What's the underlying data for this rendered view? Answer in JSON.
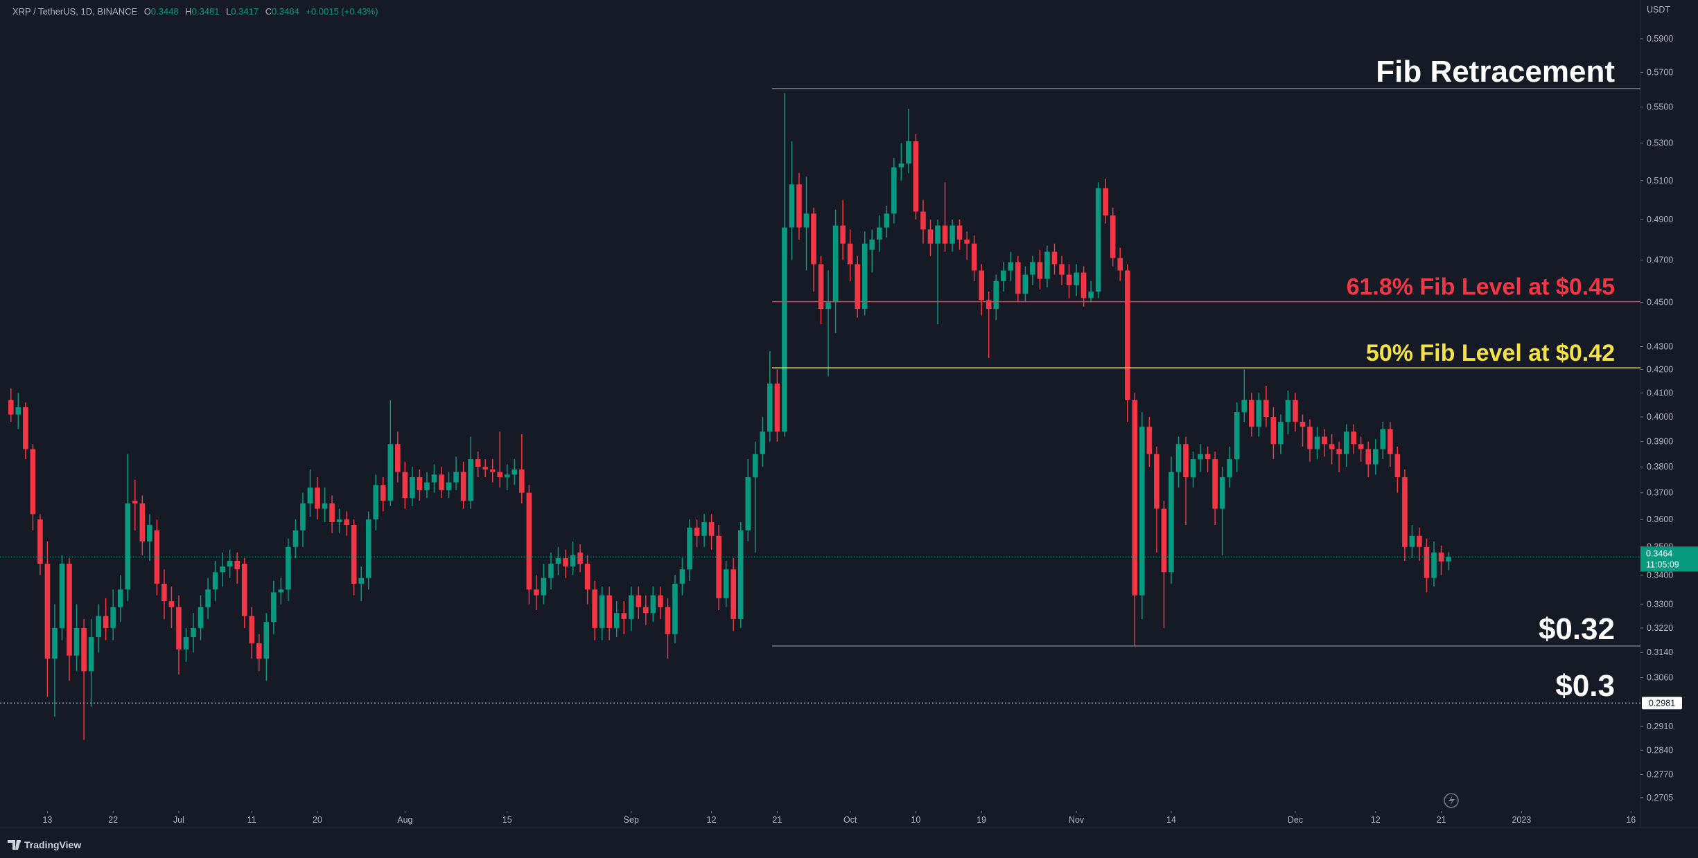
{
  "header": {
    "symbol": "XRP / TetherUS, 1D, BINANCE",
    "ohlc": [
      {
        "key": "O",
        "value": "0.3448"
      },
      {
        "key": "H",
        "value": "0.3481"
      },
      {
        "key": "L",
        "value": "0.3417"
      },
      {
        "key": "C",
        "value": "0.3464"
      }
    ],
    "change": "+0.0015 (+0.43%)"
  },
  "footer": {
    "brand": "TradingView"
  },
  "chart_data": {
    "type": "candlestick",
    "currency": "USDT",
    "log_scale": true,
    "grid": false,
    "colors": {
      "up": "#089981",
      "down": "#f23645"
    },
    "countdown": "11:05:09",
    "xlim": [
      -1.5,
      223.3
    ],
    "xticks": [
      {
        "value": 5,
        "label": "13"
      },
      {
        "value": 14,
        "label": "22"
      },
      {
        "value": 23,
        "label": "Jul"
      },
      {
        "value": 33,
        "label": "11"
      },
      {
        "value": 42,
        "label": "20"
      },
      {
        "value": 54,
        "label": "Aug"
      },
      {
        "value": 68,
        "label": "15"
      },
      {
        "value": 85,
        "label": "Sep"
      },
      {
        "value": 96,
        "label": "12"
      },
      {
        "value": 105,
        "label": "21"
      },
      {
        "value": 115,
        "label": "Oct"
      },
      {
        "value": 124,
        "label": "10"
      },
      {
        "value": 133,
        "label": "19"
      },
      {
        "value": 146,
        "label": "Nov"
      },
      {
        "value": 159,
        "label": "14"
      },
      {
        "value": 176,
        "label": "Dec"
      },
      {
        "value": 187,
        "label": "12"
      },
      {
        "value": 196,
        "label": "21"
      },
      {
        "value": 207,
        "label": "2023"
      },
      {
        "value": 222,
        "label": "16"
      }
    ],
    "ylim": [
      0.2672,
      0.614
    ],
    "yticks": [
      {
        "value": 0.59,
        "label": "0.5900"
      },
      {
        "value": 0.57,
        "label": "0.5700"
      },
      {
        "value": 0.55,
        "label": "0.5500"
      },
      {
        "value": 0.53,
        "label": "0.5300"
      },
      {
        "value": 0.51,
        "label": "0.5100"
      },
      {
        "value": 0.49,
        "label": "0.4900"
      },
      {
        "value": 0.47,
        "label": "0.4700"
      },
      {
        "value": 0.45,
        "label": "0.4500"
      },
      {
        "value": 0.43,
        "label": "0.4300"
      },
      {
        "value": 0.42,
        "label": "0.4200"
      },
      {
        "value": 0.41,
        "label": "0.4100"
      },
      {
        "value": 0.4,
        "label": "0.4000"
      },
      {
        "value": 0.39,
        "label": "0.3900"
      },
      {
        "value": 0.38,
        "label": "0.3800"
      },
      {
        "value": 0.37,
        "label": "0.3700"
      },
      {
        "value": 0.36,
        "label": "0.3600"
      },
      {
        "value": 0.35,
        "label": "0.3500"
      },
      {
        "value": 0.34,
        "label": "0.3400"
      },
      {
        "value": 0.33,
        "label": "0.3300"
      },
      {
        "value": 0.322,
        "label": "0.3220"
      },
      {
        "value": 0.314,
        "label": "0.3140"
      },
      {
        "value": 0.306,
        "label": "0.3060"
      },
      {
        "value": 0.291,
        "label": "0.2910"
      },
      {
        "value": 0.284,
        "label": "0.2840"
      },
      {
        "value": 0.277,
        "label": "0.2770"
      },
      {
        "value": 0.2705,
        "label": "0.2705"
      }
    ],
    "open": [
      0.407,
      0.401,
      0.404,
      0.387,
      0.36,
      0.344,
      0.312,
      0.322,
      0.344,
      0.313,
      0.322,
      0.308,
      0.319,
      0.326,
      0.322,
      0.329,
      0.335,
      0.367,
      0.366,
      0.352,
      0.356,
      0.337,
      0.331,
      0.329,
      0.315,
      0.319,
      0.322,
      0.329,
      0.335,
      0.341,
      0.343,
      0.345,
      0.344,
      0.326,
      0.317,
      0.312,
      0.324,
      0.334,
      0.335,
      0.35,
      0.356,
      0.366,
      0.372,
      0.364,
      0.366,
      0.359,
      0.36,
      0.358,
      0.337,
      0.339,
      0.36,
      0.373,
      0.367,
      0.389,
      0.378,
      0.368,
      0.376,
      0.371,
      0.374,
      0.377,
      0.371,
      0.374,
      0.378,
      0.367,
      0.383,
      0.38,
      0.379,
      0.378,
      0.376,
      0.377,
      0.379,
      0.37,
      0.335,
      0.333,
      0.339,
      0.344,
      0.346,
      0.343,
      0.348,
      0.344,
      0.335,
      0.322,
      0.333,
      0.322,
      0.327,
      0.325,
      0.333,
      0.329,
      0.327,
      0.333,
      0.329,
      0.32,
      0.337,
      0.342,
      0.357,
      0.354,
      0.359,
      0.354,
      0.332,
      0.342,
      0.325,
      0.356,
      0.376,
      0.385,
      0.394,
      0.414,
      0.394,
      0.486,
      0.508,
      0.486,
      0.493,
      0.468,
      0.447,
      0.45,
      0.487,
      0.478,
      0.468,
      0.447,
      0.475,
      0.48,
      0.486,
      0.493,
      0.517,
      0.519,
      0.531,
      0.494,
      0.485,
      0.478,
      0.487,
      0.478,
      0.487,
      0.48,
      0.478,
      0.465,
      0.451,
      0.447,
      0.46,
      0.465,
      0.469,
      0.454,
      0.463,
      0.469,
      0.461,
      0.474,
      0.468,
      0.463,
      0.458,
      0.464,
      0.452,
      0.455,
      0.506,
      0.492,
      0.471,
      0.465,
      0.407,
      0.333,
      0.396,
      0.385,
      0.364,
      0.341,
      0.378,
      0.389,
      0.376,
      0.383,
      0.385,
      0.383,
      0.364,
      0.376,
      0.383,
      0.402,
      0.407,
      0.396,
      0.407,
      0.4,
      0.389,
      0.398,
      0.407,
      0.398,
      0.396,
      0.387,
      0.392,
      0.389,
      0.387,
      0.385,
      0.394,
      0.389,
      0.387,
      0.381,
      0.387,
      0.395,
      0.385,
      0.376,
      0.35,
      0.354,
      0.35,
      0.339,
      0.348,
      0.3448
    ],
    "high": [
      0.412,
      0.41,
      0.406,
      0.389,
      0.362,
      0.352,
      0.33,
      0.347,
      0.346,
      0.33,
      0.325,
      0.325,
      0.33,
      0.332,
      0.335,
      0.34,
      0.385,
      0.375,
      0.369,
      0.362,
      0.36,
      0.342,
      0.336,
      0.333,
      0.322,
      0.327,
      0.333,
      0.339,
      0.345,
      0.348,
      0.349,
      0.348,
      0.346,
      0.329,
      0.32,
      0.327,
      0.338,
      0.339,
      0.353,
      0.36,
      0.37,
      0.379,
      0.376,
      0.372,
      0.369,
      0.364,
      0.363,
      0.36,
      0.343,
      0.363,
      0.377,
      0.376,
      0.407,
      0.394,
      0.382,
      0.38,
      0.379,
      0.378,
      0.381,
      0.38,
      0.378,
      0.384,
      0.382,
      0.392,
      0.386,
      0.383,
      0.383,
      0.394,
      0.381,
      0.383,
      0.393,
      0.373,
      0.34,
      0.344,
      0.348,
      0.35,
      0.349,
      0.352,
      0.351,
      0.347,
      0.338,
      0.336,
      0.336,
      0.331,
      0.331,
      0.336,
      0.336,
      0.333,
      0.336,
      0.336,
      0.332,
      0.34,
      0.346,
      0.36,
      0.36,
      0.362,
      0.362,
      0.358,
      0.345,
      0.346,
      0.359,
      0.383,
      0.39,
      0.4,
      0.428,
      0.42,
      0.558,
      0.531,
      0.514,
      0.512,
      0.496,
      0.472,
      0.465,
      0.495,
      0.5,
      0.485,
      0.472,
      0.484,
      0.485,
      0.492,
      0.497,
      0.522,
      0.53,
      0.549,
      0.535,
      0.5,
      0.49,
      0.49,
      0.509,
      0.49,
      0.49,
      0.484,
      0.482,
      0.468,
      0.455,
      0.463,
      0.469,
      0.474,
      0.472,
      0.467,
      0.472,
      0.475,
      0.477,
      0.478,
      0.472,
      0.468,
      0.468,
      0.467,
      0.46,
      0.509,
      0.511,
      0.496,
      0.476,
      0.468,
      0.41,
      0.402,
      0.4,
      0.388,
      0.367,
      0.384,
      0.392,
      0.392,
      0.386,
      0.389,
      0.388,
      0.386,
      0.38,
      0.388,
      0.406,
      0.42,
      0.41,
      0.41,
      0.413,
      0.404,
      0.401,
      0.411,
      0.41,
      0.401,
      0.399,
      0.396,
      0.395,
      0.393,
      0.39,
      0.397,
      0.397,
      0.392,
      0.39,
      0.391,
      0.398,
      0.398,
      0.388,
      0.379,
      0.358,
      0.357,
      0.353,
      0.352,
      0.3505,
      0.3481
    ],
    "low": [
      0.398,
      0.395,
      0.383,
      0.356,
      0.34,
      0.3,
      0.294,
      0.318,
      0.305,
      0.308,
      0.287,
      0.297,
      0.314,
      0.318,
      0.318,
      0.324,
      0.331,
      0.356,
      0.347,
      0.345,
      0.333,
      0.325,
      0.322,
      0.307,
      0.311,
      0.314,
      0.318,
      0.325,
      0.331,
      0.336,
      0.339,
      0.337,
      0.322,
      0.312,
      0.308,
      0.305,
      0.32,
      0.33,
      0.331,
      0.346,
      0.35,
      0.361,
      0.36,
      0.359,
      0.355,
      0.355,
      0.354,
      0.333,
      0.331,
      0.335,
      0.356,
      0.363,
      0.365,
      0.374,
      0.364,
      0.365,
      0.367,
      0.368,
      0.37,
      0.368,
      0.368,
      0.371,
      0.364,
      0.364,
      0.376,
      0.376,
      0.374,
      0.372,
      0.371,
      0.373,
      0.366,
      0.33,
      0.328,
      0.33,
      0.335,
      0.34,
      0.339,
      0.34,
      0.341,
      0.33,
      0.318,
      0.318,
      0.318,
      0.319,
      0.32,
      0.321,
      0.325,
      0.323,
      0.324,
      0.325,
      0.312,
      0.317,
      0.333,
      0.338,
      0.35,
      0.35,
      0.349,
      0.328,
      0.329,
      0.321,
      0.322,
      0.352,
      0.348,
      0.38,
      0.39,
      0.39,
      0.392,
      0.47,
      0.48,
      0.465,
      0.455,
      0.44,
      0.417,
      0.436,
      0.47,
      0.46,
      0.443,
      0.444,
      0.464,
      0.474,
      0.481,
      0.488,
      0.51,
      0.514,
      0.49,
      0.478,
      0.472,
      0.44,
      0.474,
      0.474,
      0.475,
      0.47,
      0.46,
      0.444,
      0.425,
      0.442,
      0.455,
      0.46,
      0.45,
      0.45,
      0.458,
      0.456,
      0.457,
      0.463,
      0.458,
      0.452,
      0.453,
      0.448,
      0.45,
      0.452,
      0.488,
      0.467,
      0.46,
      0.398,
      0.316,
      0.325,
      0.38,
      0.348,
      0.322,
      0.337,
      0.372,
      0.358,
      0.372,
      0.378,
      0.378,
      0.358,
      0.347,
      0.372,
      0.378,
      0.398,
      0.392,
      0.392,
      0.396,
      0.383,
      0.385,
      0.393,
      0.394,
      0.388,
      0.382,
      0.383,
      0.384,
      0.381,
      0.378,
      0.38,
      0.385,
      0.382,
      0.376,
      0.377,
      0.383,
      0.38,
      0.37,
      0.345,
      0.346,
      0.345,
      0.334,
      0.336,
      0.34,
      0.3417
    ],
    "close": [
      0.401,
      0.404,
      0.387,
      0.362,
      0.344,
      0.312,
      0.322,
      0.344,
      0.313,
      0.322,
      0.308,
      0.319,
      0.326,
      0.322,
      0.329,
      0.335,
      0.366,
      0.366,
      0.352,
      0.358,
      0.337,
      0.331,
      0.329,
      0.315,
      0.319,
      0.322,
      0.329,
      0.335,
      0.341,
      0.343,
      0.345,
      0.342,
      0.326,
      0.317,
      0.312,
      0.324,
      0.334,
      0.335,
      0.35,
      0.356,
      0.366,
      0.372,
      0.364,
      0.366,
      0.359,
      0.36,
      0.358,
      0.337,
      0.339,
      0.36,
      0.373,
      0.367,
      0.389,
      0.378,
      0.368,
      0.376,
      0.371,
      0.374,
      0.377,
      0.371,
      0.374,
      0.378,
      0.367,
      0.383,
      0.38,
      0.379,
      0.378,
      0.376,
      0.377,
      0.379,
      0.37,
      0.335,
      0.333,
      0.339,
      0.344,
      0.346,
      0.343,
      0.347,
      0.344,
      0.335,
      0.322,
      0.333,
      0.322,
      0.327,
      0.325,
      0.333,
      0.329,
      0.327,
      0.333,
      0.329,
      0.32,
      0.337,
      0.342,
      0.357,
      0.354,
      0.359,
      0.354,
      0.332,
      0.342,
      0.325,
      0.356,
      0.376,
      0.385,
      0.394,
      0.414,
      0.394,
      0.486,
      0.508,
      0.486,
      0.493,
      0.468,
      0.447,
      0.45,
      0.487,
      0.478,
      0.468,
      0.447,
      0.478,
      0.48,
      0.486,
      0.493,
      0.517,
      0.519,
      0.531,
      0.494,
      0.485,
      0.478,
      0.487,
      0.478,
      0.487,
      0.48,
      0.478,
      0.465,
      0.451,
      0.447,
      0.46,
      0.465,
      0.469,
      0.454,
      0.463,
      0.469,
      0.461,
      0.474,
      0.468,
      0.463,
      0.458,
      0.464,
      0.452,
      0.455,
      0.506,
      0.492,
      0.471,
      0.465,
      0.407,
      0.333,
      0.396,
      0.385,
      0.364,
      0.341,
      0.378,
      0.389,
      0.376,
      0.383,
      0.385,
      0.383,
      0.364,
      0.376,
      0.383,
      0.402,
      0.407,
      0.396,
      0.407,
      0.4,
      0.389,
      0.398,
      0.407,
      0.398,
      0.396,
      0.387,
      0.392,
      0.389,
      0.387,
      0.385,
      0.394,
      0.389,
      0.387,
      0.381,
      0.387,
      0.395,
      0.385,
      0.376,
      0.35,
      0.354,
      0.35,
      0.339,
      0.348,
      0.3448,
      0.3464
    ],
    "levels": [
      {
        "value": 0.5606,
        "start": 104.3,
        "color": "#787b86",
        "label": "Fib Retracement",
        "label_color": "#ffffff"
      },
      {
        "value": 0.4503,
        "start": 104.3,
        "color": "#f23645",
        "label": "61.8% Fib Level at $0.45",
        "label_color": "#f23645"
      },
      {
        "value": 0.4207,
        "start": 104.3,
        "color": "#f5e342",
        "label": "50% Fib Level at $0.42",
        "label_color": "#f5e342"
      },
      {
        "value": 0.3161,
        "start": 104.3,
        "color": "#787b86",
        "label": "$0.32",
        "label_color": "#ffffff"
      },
      {
        "value": 0.2981,
        "color": "#9598a1",
        "style": "dotted",
        "label": "$0.3",
        "label_color": "#ffffff",
        "price_label": true
      }
    ]
  }
}
